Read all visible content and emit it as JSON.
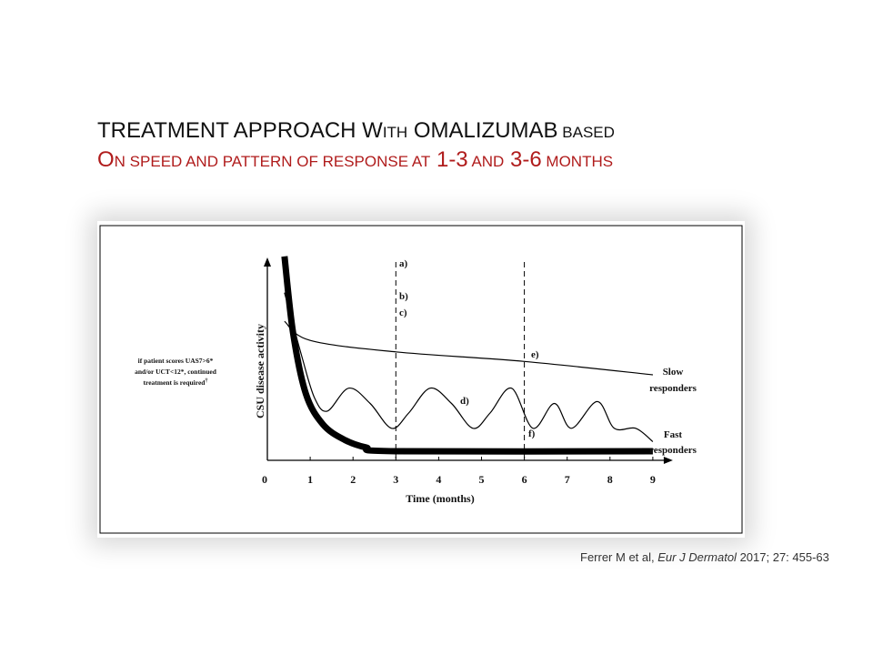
{
  "title": {
    "line1": [
      {
        "text": "TREATMENT APPROACH",
        "size": "big"
      },
      {
        "text": " W",
        "size": "big"
      },
      {
        "text": "ITH",
        "size": "sc"
      },
      {
        "text": " OMALIZUMAB",
        "size": "big"
      },
      {
        "text": " BASED",
        "size": "sc"
      }
    ],
    "line2": [
      {
        "text": "O",
        "size": "big"
      },
      {
        "text": "N SPEED AND PATTERN OF RESPONSE AT",
        "size": "sc"
      },
      {
        "text": " 1-3",
        "size": "big"
      },
      {
        "text": " AND",
        "size": "sc"
      },
      {
        "text": " 3-6",
        "size": "big"
      },
      {
        "text": " MONTHS",
        "size": "sc"
      }
    ]
  },
  "chart_data": {
    "type": "line",
    "xlabel": "Time (months)",
    "ylabel": "CSU disease activity",
    "x_ticks": [
      "0",
      "1",
      "2",
      "3",
      "4",
      "5",
      "6",
      "7",
      "8",
      "9"
    ],
    "xlim": [
      0,
      9
    ],
    "y_scale": "qualitative (no numeric ticks)",
    "vlines": [
      3,
      6
    ],
    "series": [
      {
        "name": "Slow responders",
        "style": "thin",
        "points": [
          [
            0.4,
            0.68
          ],
          [
            1,
            0.58
          ],
          [
            3,
            0.52
          ],
          [
            6,
            0.47
          ],
          [
            9,
            0.4
          ]
        ]
      },
      {
        "name": "",
        "style": "thin-oscillating",
        "points": [
          [
            0.4,
            0.83
          ],
          [
            0.8,
            0.5
          ],
          [
            1.1,
            0.28
          ],
          [
            1.4,
            0.21
          ],
          [
            1.9,
            0.33
          ],
          [
            2.4,
            0.25
          ],
          [
            2.9,
            0.12
          ],
          [
            3.3,
            0.2
          ],
          [
            3.8,
            0.33
          ],
          [
            4.3,
            0.25
          ],
          [
            4.8,
            0.12
          ],
          [
            5.2,
            0.2
          ],
          [
            5.7,
            0.33
          ],
          [
            6.2,
            0.12
          ],
          [
            6.7,
            0.25
          ],
          [
            7.1,
            0.12
          ],
          [
            7.7,
            0.26
          ],
          [
            8.1,
            0.12
          ],
          [
            8.6,
            0.12
          ],
          [
            9,
            0.05
          ]
        ]
      },
      {
        "name": "Fast responders",
        "style": "thick",
        "points": [
          [
            0.4,
            1.02
          ],
          [
            0.6,
            0.62
          ],
          [
            0.9,
            0.3
          ],
          [
            1.3,
            0.14
          ],
          [
            1.8,
            0.06
          ],
          [
            2.3,
            0.02
          ],
          [
            3,
            0.0
          ],
          [
            9,
            0.0
          ]
        ]
      }
    ],
    "annotations": {
      "a": "a)",
      "b": "b)",
      "c": "c)",
      "d": "d)",
      "e": "e)",
      "f": "f)",
      "note_lines": [
        "if patient scores UAS7>6*",
        "and/or UCT<12*, continued",
        "treatment is required"
      ],
      "note_mark": "†",
      "slow_label_lines": [
        "Slow",
        "responders"
      ],
      "fast_label_lines": [
        "Fast",
        "responders"
      ]
    }
  },
  "citation": {
    "authors": "Ferrer M et al, ",
    "journal": "Eur J Dermatol",
    "details": " 2017; 27: 455-63"
  }
}
